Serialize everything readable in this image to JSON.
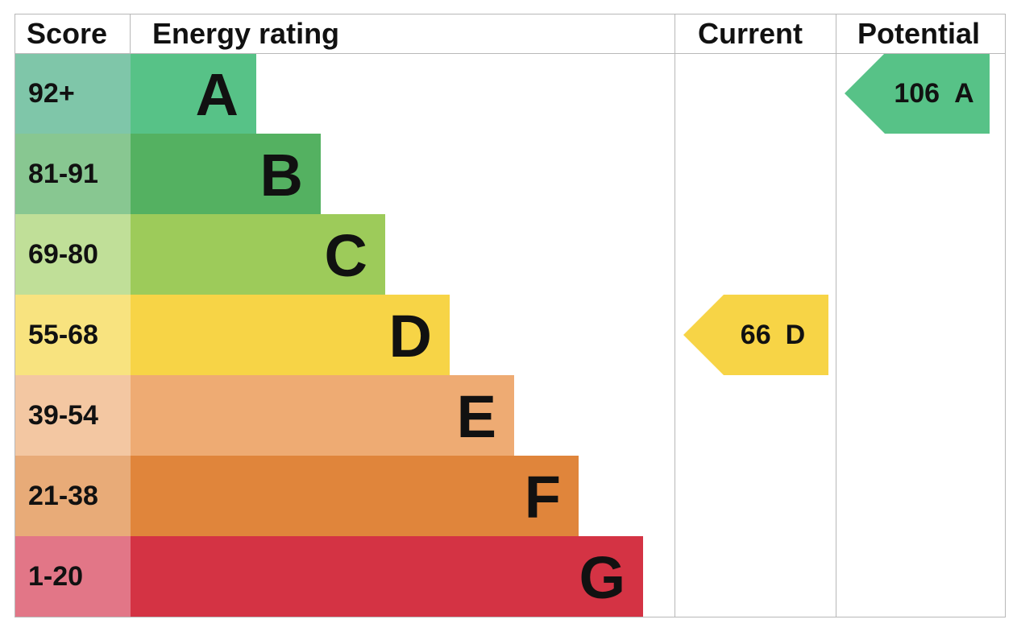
{
  "headers": {
    "score": "Score",
    "energy_rating": "Energy rating",
    "current": "Current",
    "potential": "Potential"
  },
  "bands": [
    {
      "letter": "A",
      "range": "92+",
      "bar_color": "#57c287",
      "score_color": "#7fc6a9"
    },
    {
      "letter": "B",
      "range": "81-91",
      "bar_color": "#54b161",
      "score_color": "#88c791"
    },
    {
      "letter": "C",
      "range": "69-80",
      "bar_color": "#9dcb5a",
      "score_color": "#c0df98"
    },
    {
      "letter": "D",
      "range": "55-68",
      "bar_color": "#f7d446",
      "score_color": "#f8e37f"
    },
    {
      "letter": "E",
      "range": "39-54",
      "bar_color": "#eeab73",
      "score_color": "#f3c7a2"
    },
    {
      "letter": "F",
      "range": "21-38",
      "bar_color": "#e0853b",
      "score_color": "#e8ab78"
    },
    {
      "letter": "G",
      "range": "1-20",
      "bar_color": "#d43344",
      "score_color": "#e27687"
    }
  ],
  "current": {
    "score": "66",
    "letter": "D",
    "color": "#f7d446"
  },
  "potential": {
    "score": "106",
    "letter": "A",
    "color": "#57c287"
  }
}
